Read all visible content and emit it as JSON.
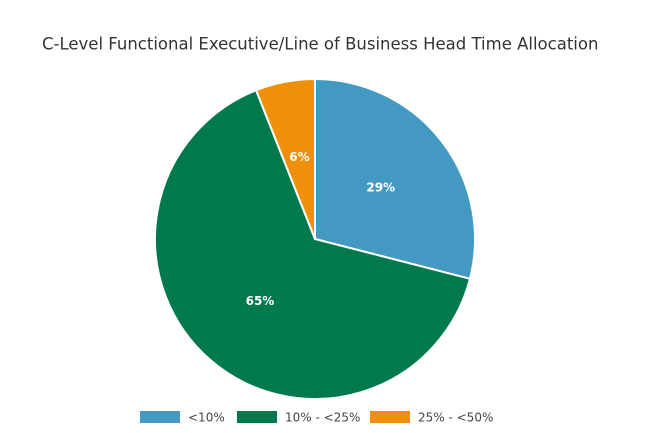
{
  "chart_data": {
    "type": "pie",
    "title": "C-Level Functional Executive/Line of Business Head Time Allocation",
    "categories": [
      "<10%",
      "10% - <25%",
      "25% - <50%"
    ],
    "values": [
      29,
      65,
      6
    ],
    "value_labels": [
      "29%",
      "65%",
      "6%"
    ],
    "colors": [
      "#4499c2",
      "#007a4d",
      "#f0900a"
    ],
    "legend": "bottom"
  }
}
